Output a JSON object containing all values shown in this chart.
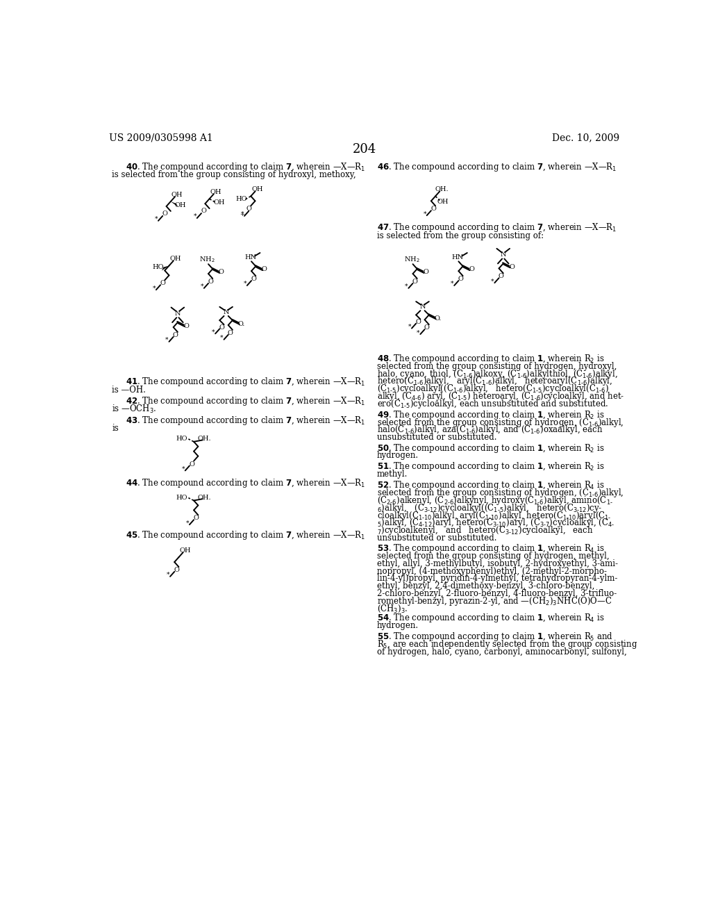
{
  "background": "#ffffff",
  "header_left": "US 2009/0305998 A1",
  "header_right": "Dec. 10, 2009",
  "page_number": "204"
}
